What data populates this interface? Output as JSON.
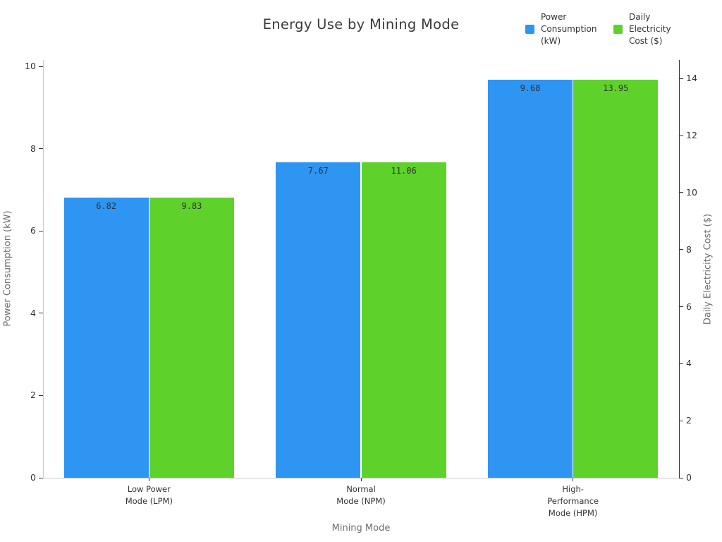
{
  "title": "Energy Use by Mining Mode",
  "style": {
    "power_color": "#2e95f3",
    "cost_color": "#5ed22b",
    "title_color": "#3a3a3a",
    "tick_label_color": "#333333",
    "axis_label_color": "#6e6e6e"
  },
  "legend": {
    "position": "top-right",
    "items": [
      {
        "label": "Power\nConsumption\n(kW)",
        "color": "#2e95f3"
      },
      {
        "label": "Daily\nElectricity\nCost ($)",
        "color": "#5ed22b"
      }
    ]
  },
  "chart_data": {
    "type": "bar",
    "title": "Energy Use by Mining Mode",
    "xlabel": "Mining Mode",
    "ylabel_left": "Power Consumption (kW)",
    "ylabel_right": "Daily Electricity Cost ($)",
    "categories": [
      "Low Power\nMode (LPM)",
      "Normal\nMode (NPM)",
      "High-\nPerformance\nMode (HPM)"
    ],
    "series": [
      {
        "name": "Power Consumption (kW)",
        "legend_label": "Power\nConsumption\n(kW)",
        "axis": "left",
        "color": "#2e95f3",
        "values": [
          6.82,
          7.67,
          9.68
        ]
      },
      {
        "name": "Daily Electricity Cost ($)",
        "legend_label": "Daily\nElectricity\nCost ($)",
        "axis": "right",
        "color": "#5ed22b",
        "values": [
          9.83,
          11.06,
          13.95
        ]
      }
    ],
    "yticks_left": [
      0,
      2,
      4,
      6,
      8,
      10
    ],
    "yticks_right": [
      0,
      2,
      4,
      6,
      8,
      10,
      12,
      14
    ],
    "ylim_left": [
      0,
      10.16
    ],
    "ylim_right": [
      0,
      14.65
    ],
    "grid": false,
    "bar_value_labels": true,
    "legend_position": "top-right"
  }
}
